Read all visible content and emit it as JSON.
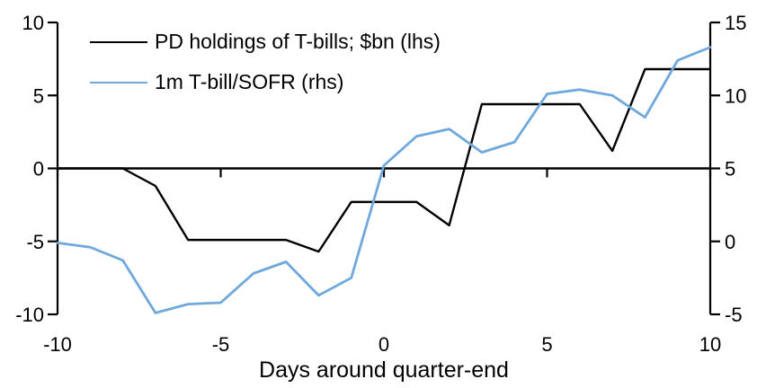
{
  "chart_data": {
    "type": "line",
    "title": "",
    "xlabel": "Days around quarter-end",
    "x": [
      -10,
      -9,
      -8,
      -7,
      -6,
      -5,
      -4,
      -3,
      -2,
      -1,
      0,
      1,
      2,
      3,
      4,
      5,
      6,
      7,
      8,
      9,
      10
    ],
    "series": [
      {
        "name": "PD holdings of T-bills; $bn (lhs)",
        "axis": "left",
        "color": "#000000",
        "values": [
          0,
          0,
          0,
          -1.2,
          -4.9,
          -4.9,
          -4.9,
          -4.9,
          -5.7,
          -2.3,
          -2.3,
          -2.3,
          -3.9,
          4.4,
          4.4,
          4.4,
          4.4,
          1.2,
          6.8,
          6.8,
          6.8
        ]
      },
      {
        "name": "1m T-bill/SOFR (rhs)",
        "axis": "right",
        "color": "#6FA8DC",
        "values": [
          -0.1,
          -0.4,
          -1.3,
          -4.9,
          -4.3,
          -4.2,
          -2.2,
          -1.4,
          -3.7,
          -2.5,
          5.2,
          7.2,
          7.7,
          6.1,
          6.8,
          10.1,
          10.4,
          10.0,
          8.5,
          12.4,
          13.3
        ]
      }
    ],
    "left_axis": {
      "ticks": [
        10,
        5,
        0,
        -5,
        -10
      ],
      "range": [
        -10,
        10
      ]
    },
    "right_axis": {
      "ticks": [
        15,
        10,
        5,
        0,
        -5
      ],
      "range": [
        -5,
        15
      ]
    },
    "x_axis": {
      "ticks": [
        -10,
        -5,
        0,
        5,
        10
      ],
      "range": [
        -10,
        10
      ]
    },
    "legend": {
      "position": "top-left",
      "entries": [
        "PD holdings of T-bills; $bn (lhs)",
        "1m T-bill/SOFR (rhs)"
      ]
    },
    "grid": false,
    "background": "#ffffff",
    "axis_color": "#000000"
  }
}
